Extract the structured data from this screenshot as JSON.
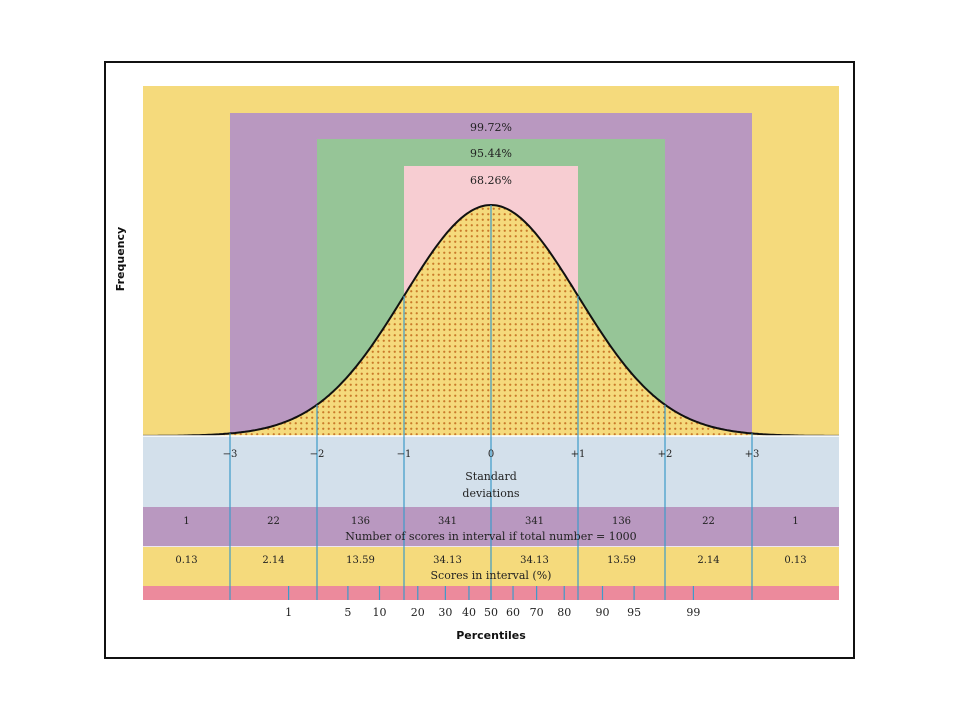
{
  "chart_data": {
    "type": "area",
    "ylabel": "Frequency",
    "x_axis_title": "Standard deviations",
    "sd_ticks": [
      "−3",
      "−2",
      "−1",
      "0",
      "+1",
      "+2",
      "+3"
    ],
    "sd_values": [
      -3,
      -2,
      -1,
      0,
      1,
      2,
      3
    ],
    "band_percentages": [
      {
        "label": "99.72%",
        "range": [
          -3,
          3
        ]
      },
      {
        "label": "95.44%",
        "range": [
          -2,
          2
        ]
      },
      {
        "label": "68.26%",
        "range": [
          -1,
          1
        ]
      }
    ],
    "count_row": {
      "title": "Number of scores in interval if total number = 1000",
      "values": [
        "1",
        "22",
        "136",
        "341",
        "341",
        "136",
        "22",
        "1"
      ]
    },
    "percent_row": {
      "title": "Scores in interval (%)",
      "values": [
        "0.13",
        "2.14",
        "13.59",
        "34.13",
        "34.13",
        "13.59",
        "2.14",
        "0.13"
      ]
    },
    "percentiles": {
      "title": "Percentiles",
      "ticks": [
        "1",
        "5",
        "10",
        "20",
        "30",
        "40",
        "50",
        "60",
        "70",
        "80",
        "90",
        "95",
        "99"
      ],
      "values": [
        1,
        5,
        10,
        20,
        30,
        40,
        50,
        60,
        70,
        80,
        90,
        95,
        99
      ]
    },
    "xlim": [
      -4,
      4
    ],
    "colors": {
      "outer": "#f5da7c",
      "band3": "#b998c0",
      "band2": "#96c597",
      "band1": "#f7cdd2",
      "sd_row": "#d3e0eb",
      "count_row": "#b998c0",
      "percent_row": "#f5da7c",
      "percentile_strip": "#ec8a9c",
      "guide_line": "#3d9bc9",
      "dots": "#c97a2a",
      "curve": "#111111"
    }
  }
}
